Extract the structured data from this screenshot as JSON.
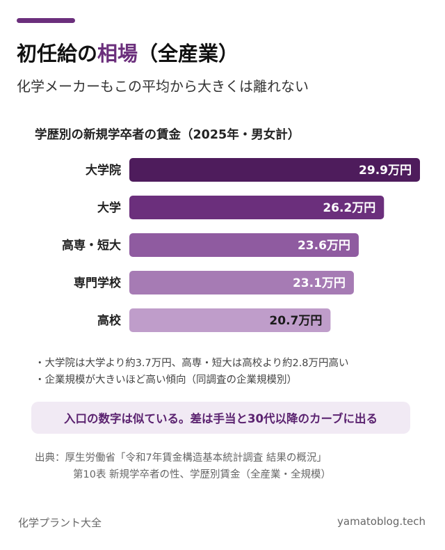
{
  "header": {
    "title_pre": "初任給の",
    "title_highlight": "相場",
    "title_post": "（全産業）",
    "subtitle": "化学メーカーもこの平均から大きくは離れない"
  },
  "colors": {
    "accent": "#6b2f7c",
    "bars": [
      "#4e1c5c",
      "#6b2f7c",
      "#8f5ba0",
      "#a67bb4",
      "#bf9dca"
    ],
    "value_text": [
      "#ffffff",
      "#ffffff",
      "#ffffff",
      "#ffffff",
      "#1a1a1a"
    ]
  },
  "chart_data": {
    "type": "bar",
    "orientation": "horizontal",
    "title": "学歴別の新規学卒者の賃金（2025年・男女計）",
    "categories": [
      "大学院",
      "大学",
      "高専・短大",
      "専門学校",
      "高校"
    ],
    "values": [
      29.9,
      26.2,
      23.6,
      23.1,
      20.7
    ],
    "value_labels": [
      "29.9万円",
      "26.2万円",
      "23.6万円",
      "23.1万円",
      "20.7万円"
    ],
    "unit": "万円",
    "xlim": [
      0,
      29.9
    ],
    "grid": false,
    "legend": "none"
  },
  "notes": [
    "・大学院は大学より約3.7万円、高専・短大は高校より約2.8万円高い",
    "・企業規模が大きいほど高い傾向（同調査の企業規模別）"
  ],
  "callout": "入口の数字は似ている。差は手当と30代以降のカーブに出る",
  "source": {
    "line1": "出典：厚生労働省「令和7年賃金構造基本統計調査 結果の概況」",
    "line2": "第10表 新規学卒者の性、学歴別賃金（全産業・全規模）"
  },
  "footer": {
    "left": "化学プラント大全",
    "right": "yamatoblog.tech"
  }
}
